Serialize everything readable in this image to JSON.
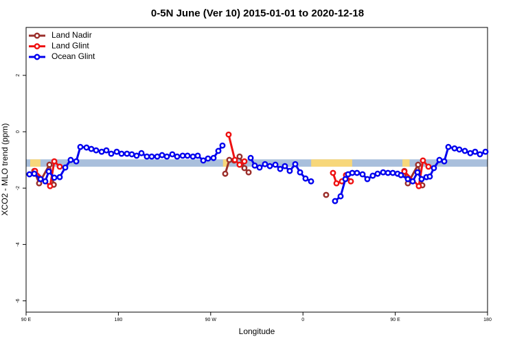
{
  "chart_data": {
    "type": "line",
    "title": "0-5N June (Ver 10)   2015-01-01 to 2020-12-18",
    "xlabel": "Longitude",
    "ylabel": "XCO2 - MLO trend (ppm)",
    "xlim": [
      90,
      540
    ],
    "ylim": [
      -6.4,
      3.7
    ],
    "xticks": [
      {
        "value": 90,
        "label": "90 E"
      },
      180,
      {
        "value": 270,
        "label": "90 W"
      },
      {
        "value": 360,
        "label": "0"
      },
      {
        "value": 450,
        "label": "90 E"
      },
      {
        "value": 540,
        "label": "180"
      }
    ],
    "yticks": [
      -6,
      -4,
      -2,
      0,
      2
    ],
    "grid": false,
    "legend": "top-left",
    "band": {
      "range": [
        -1.24,
        -0.98
      ],
      "color": "#a9bfdc"
    },
    "highlight": {
      "ranges": [
        [
          94,
          104
        ],
        [
          282,
          288
        ],
        [
          368,
          408
        ],
        [
          457,
          464
        ]
      ],
      "color": "#f7d77a"
    },
    "series": [
      {
        "name": "Land Nadir",
        "color": "#9b2f2b",
        "x": [
          98.0,
          102.7,
          112.8,
          117.0,
          null,
          284.2,
          288.2,
          292.9,
          298.2,
          302.9,
          307.0,
          null,
          382.6,
          null,
          458.9,
          462.3,
          472.3,
          476.4
        ],
        "values": [
          -1.39,
          -1.83,
          -1.17,
          -1.88,
          null,
          -1.49,
          -1.0,
          -1.02,
          -0.88,
          -1.29,
          -1.44,
          null,
          -2.24,
          null,
          -1.39,
          -1.83,
          -1.17,
          -1.9
        ]
      },
      {
        "name": "Land Glint",
        "color": "#ee1111",
        "x": [
          98.7,
          113.4,
          117.5,
          122.8,
          null,
          287.5,
          293.6,
          298.2,
          302.9,
          null,
          389.3,
          392.7,
          398.0,
          402.0,
          406.7,
          null,
          458.9,
          473.0,
          477.0,
          482.4
        ],
        "values": [
          -1.39,
          -1.93,
          -1.05,
          -1.24,
          null,
          -0.1,
          -1.0,
          -1.17,
          -1.05,
          null,
          -1.46,
          -1.83,
          -1.76,
          -1.54,
          -1.76,
          null,
          -1.41,
          -1.93,
          -1.02,
          -1.24
        ]
      },
      {
        "name": "Ocean Glint",
        "color": "#0000ee",
        "x": [
          93.3,
          98.0,
          104.1,
          108.7,
          112.1,
          117.5,
          122.8,
          128.2,
          133.5,
          138.9,
          142.9,
          148.9,
          153.6,
          158.3,
          163.7,
          168.3,
          173.0,
          178.4,
          183.1,
          188.4,
          193.1,
          197.8,
          202.5,
          207.8,
          212.5,
          217.9,
          222.6,
          227.3,
          232.6,
          237.3,
          242.7,
          247.4,
          252.7,
          257.4,
          262.8,
          267.4,
          272.8,
          277.5,
          281.5,
          null,
          309.0,
          313.0,
          317.7,
          323.0,
          327.7,
          333.1,
          337.8,
          342.4,
          347.1,
          352.5,
          357.2,
          362.5,
          367.9,
          null,
          391.3,
          396.7,
          401.4,
          404.0,
          408.1,
          412.7,
          418.1,
          422.8,
          428.1,
          432.8,
          438.2,
          442.9,
          447.6,
          452.3,
          455.6,
          462.3,
          467.0,
          471.7,
          475.7,
          480.4,
          483.7,
          487.7,
          493.1,
          497.8,
          501.8,
          507.8,
          512.5,
          517.9,
          523.2,
          527.9,
          532.6,
          538.0
        ],
        "values": [
          -1.51,
          -1.49,
          -1.68,
          -1.76,
          -1.41,
          -1.63,
          -1.61,
          -1.27,
          -1.0,
          -1.05,
          -0.54,
          -0.56,
          -0.61,
          -0.66,
          -0.71,
          -0.66,
          -0.78,
          -0.71,
          -0.78,
          -0.78,
          -0.8,
          -0.85,
          -0.76,
          -0.88,
          -0.88,
          -0.88,
          -0.83,
          -0.88,
          -0.8,
          -0.88,
          -0.85,
          -0.85,
          -0.88,
          -0.85,
          -1.02,
          -0.95,
          -0.93,
          -0.68,
          -0.49,
          null,
          -0.93,
          -1.2,
          -1.27,
          -1.15,
          -1.22,
          -1.17,
          -1.32,
          -1.22,
          -1.39,
          -1.15,
          -1.44,
          -1.66,
          -1.76,
          null,
          -2.46,
          -2.29,
          -1.68,
          -1.51,
          -1.46,
          -1.46,
          -1.51,
          -1.68,
          -1.56,
          -1.49,
          -1.44,
          -1.46,
          -1.46,
          -1.49,
          -1.54,
          -1.68,
          -1.76,
          -1.44,
          -1.68,
          -1.61,
          -1.59,
          -1.29,
          -1.0,
          -1.05,
          -0.54,
          -0.59,
          -0.63,
          -0.68,
          -0.76,
          -0.71,
          -0.8,
          -0.71
        ]
      }
    ]
  }
}
